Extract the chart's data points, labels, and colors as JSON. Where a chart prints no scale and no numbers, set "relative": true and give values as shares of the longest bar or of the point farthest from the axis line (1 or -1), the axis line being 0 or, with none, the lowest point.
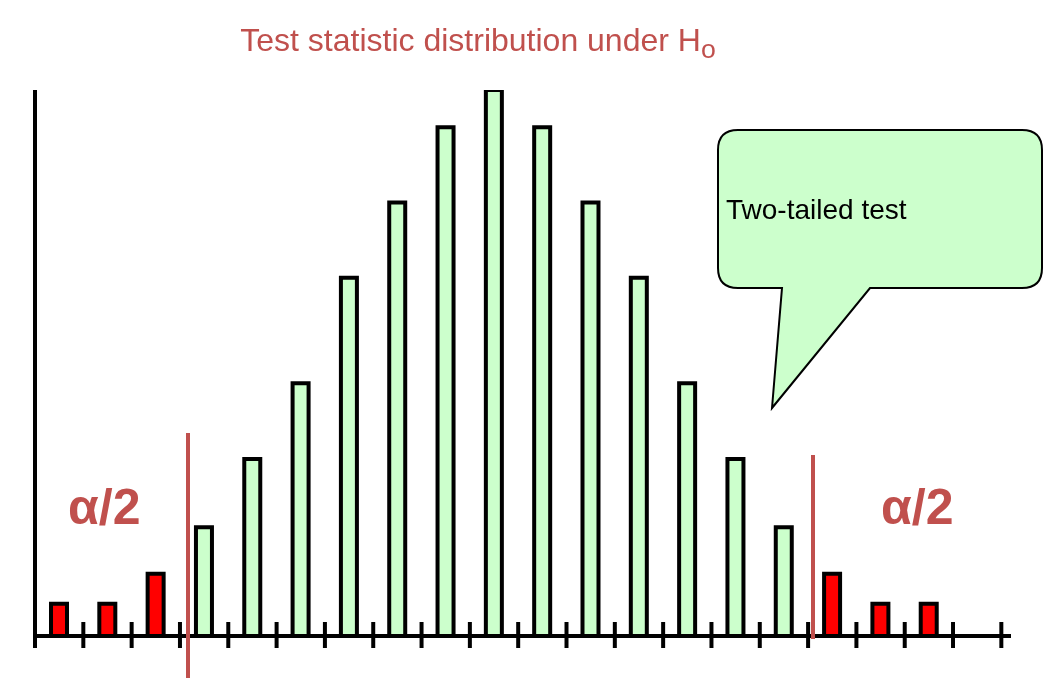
{
  "chart_data": {
    "type": "bar",
    "title": "Test statistic distribution under H$_{o}$",
    "categories": [
      null,
      null,
      null,
      null,
      null,
      null,
      null,
      null,
      null,
      null,
      null,
      null,
      null,
      null,
      null,
      null,
      null,
      null,
      null
    ],
    "values": [
      0.059,
      0.059,
      0.114,
      0.199,
      0.324,
      0.463,
      0.656,
      0.794,
      0.932,
      1,
      0.932,
      0.794,
      0.656,
      0.463,
      0.324,
      0.199,
      0.114,
      0.059,
      0.059
    ],
    "colors": [
      "#ff0000",
      "#ff0000",
      "#ff0000",
      "#ccffcc",
      "#ccffcc",
      "#ccffcc",
      "#ccffcc",
      "#ccffcc",
      "#ccffcc",
      "#ccffcc",
      "#ccffcc",
      "#ccffcc",
      "#ccffcc",
      "#ccffcc",
      "#ccffcc",
      "#ccffcc",
      "#ff0000",
      "#ff0000",
      "#ff0000"
    ],
    "relative": true,
    "annotations": [
      "α/2",
      "α/2",
      "Two-tailed test"
    ]
  }
}
